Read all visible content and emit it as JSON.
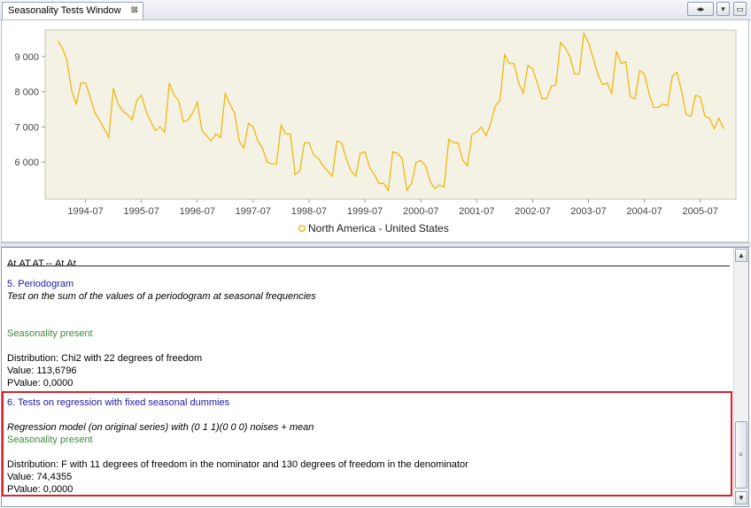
{
  "window": {
    "tab_title": "Seasonality Tests Window",
    "tab_close_glyph": "⊠",
    "buttons": {
      "nav_glyph": "◂▸",
      "menu_glyph": "▾",
      "maximize_glyph": "▭"
    }
  },
  "chart_data": {
    "type": "line",
    "series": [
      {
        "name": "North America - United States",
        "color": "#f0b400"
      }
    ],
    "x_labels": [
      "1994-07",
      "1995-07",
      "1996-07",
      "1997-07",
      "1998-07",
      "1999-07",
      "2000-07",
      "2001-07",
      "2002-07",
      "2003-07",
      "2004-07",
      "2005-07"
    ],
    "y_ticks": [
      "9 000",
      "8 000",
      "7 000",
      "6 000"
    ],
    "y_tick_values": [
      9000,
      8000,
      7000,
      6000
    ],
    "ylim": [
      4950,
      9750
    ],
    "x_start": "1994-01",
    "values": [
      9450,
      9250,
      8900,
      8050,
      7650,
      8250,
      8250,
      7850,
      7400,
      7200,
      6950,
      6700,
      8100,
      7650,
      7450,
      7350,
      7200,
      7750,
      7900,
      7450,
      7150,
      6900,
      7000,
      6850,
      8250,
      7900,
      7750,
      7150,
      7200,
      7400,
      7700,
      6900,
      6750,
      6600,
      6800,
      6700,
      7950,
      7650,
      7400,
      6600,
      6400,
      7100,
      7000,
      6600,
      6400,
      6000,
      5950,
      5950,
      7050,
      6800,
      6800,
      5650,
      5750,
      6550,
      6550,
      6200,
      6100,
      5900,
      5750,
      5600,
      6600,
      6550,
      6100,
      5750,
      5600,
      6250,
      6300,
      5850,
      5650,
      5400,
      5400,
      5200,
      6300,
      6250,
      6100,
      5200,
      5400,
      6000,
      6050,
      5900,
      5450,
      5250,
      5350,
      5300,
      6650,
      6550,
      6550,
      6050,
      5900,
      6800,
      6850,
      7000,
      6750,
      7100,
      7600,
      7750,
      9050,
      8800,
      8800,
      8250,
      7950,
      8750,
      8650,
      8250,
      7800,
      7800,
      8150,
      8200,
      9400,
      9250,
      9000,
      8500,
      8500,
      9650,
      9400,
      8950,
      8500,
      8200,
      8250,
      7950,
      9150,
      8800,
      8850,
      7850,
      7800,
      8600,
      8500,
      7950,
      7550,
      7550,
      7650,
      7600,
      8450,
      8550,
      8000,
      7350,
      7300,
      7900,
      7850,
      7300,
      7250,
      6950,
      7250,
      6950
    ],
    "grid": false,
    "legend_position": "bottom-center",
    "plot_background": "#f4f2e4"
  },
  "results": {
    "header": "At.AT.AT.--.At.At",
    "periodogram": {
      "title": "5. Periodogram",
      "description": "Test on the sum of the values of a periodogram at seasonal frequencies",
      "verdict": "Seasonality present",
      "distribution": "Distribution: Chi2 with 22 degrees of freedom",
      "value": "Value: 113,6796",
      "pvalue": "PValue: 0,0000"
    },
    "regression": {
      "title": "6. Tests on regression with fixed seasonal dummies",
      "description": "Regression model (on original series) with (0 1 1)(0 0 0) noises + mean",
      "verdict": "Seasonality present",
      "distribution": "Distribution: F with 11 degrees of freedom in the nominator and 130 degrees of freedom in the denominator",
      "value": "Value: 74,4355",
      "pvalue": "PValue: 0,0000"
    },
    "highlight_color": "#d8212b"
  },
  "scrollbar": {
    "up_glyph": "▲",
    "down_glyph": "▼",
    "grip_glyph": "≡"
  }
}
